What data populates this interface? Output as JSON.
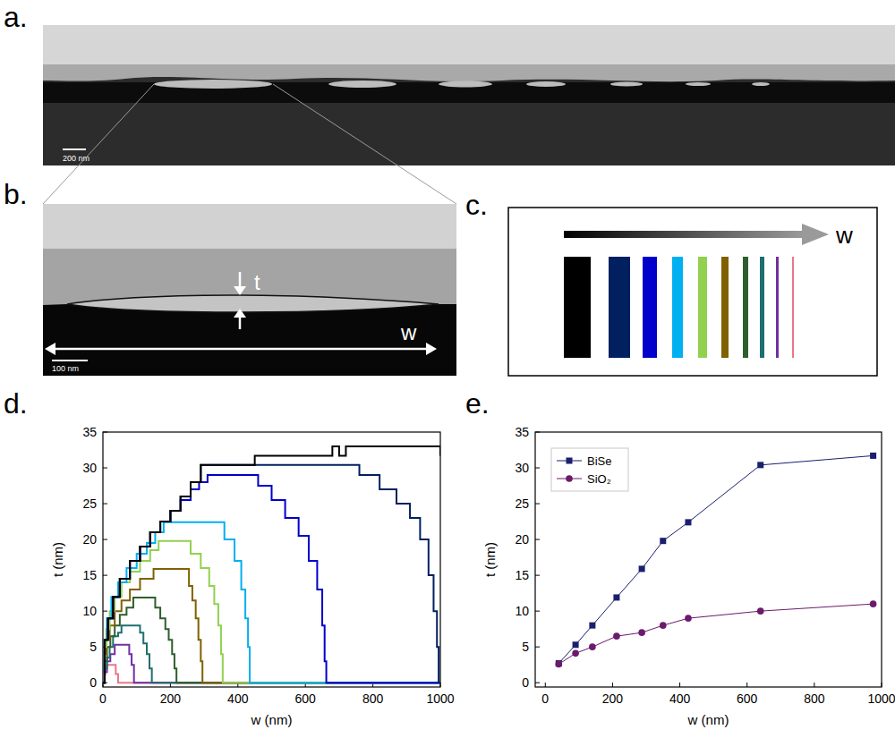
{
  "panels": [
    {
      "label": "a.",
      "scale_bar": "200 nm"
    },
    {
      "label": "b.",
      "scale_bar": "100 nm",
      "t_label": "t",
      "w_label": "w"
    },
    {
      "label": "c.",
      "w_label": "w"
    },
    {
      "label": "d."
    },
    {
      "label": "e."
    }
  ],
  "chart_data": [
    {
      "type": "line",
      "line_style": "step",
      "x_label": "w (nm)",
      "y_label": "t (nm)",
      "xlim": [
        0,
        1000
      ],
      "xticks": [
        0,
        200,
        400,
        600,
        800,
        1000
      ],
      "ylim": [
        -0.6,
        35
      ],
      "yticks": [
        0,
        5,
        10,
        15,
        20,
        25,
        30,
        35
      ],
      "series": [
        {
          "color": "#000000",
          "x": [
            0,
            5,
            15,
            30,
            50,
            80,
            110,
            140,
            170,
            200,
            230,
            260,
            290,
            450,
            680,
            700,
            720,
            1000
          ],
          "values": [
            0,
            6,
            9,
            12,
            14.5,
            17,
            19,
            21,
            22.5,
            24,
            26,
            28,
            30.4,
            31.7,
            33,
            31.7,
            33,
            31.7
          ]
        },
        {
          "color": "#002060",
          "x": [
            0,
            5,
            15,
            30,
            50,
            80,
            110,
            140,
            170,
            200,
            230,
            260,
            290,
            700,
            760,
            820,
            870,
            910,
            940,
            965,
            980,
            990,
            995,
            1000
          ],
          "values": [
            0,
            6,
            9,
            12,
            14.5,
            17,
            19,
            21,
            22.5,
            24,
            26,
            28,
            30.4,
            30.4,
            29,
            27,
            25,
            23,
            20,
            15,
            10,
            5,
            0,
            0
          ]
        },
        {
          "color": "#0000cc",
          "x": [
            0,
            5,
            15,
            30,
            50,
            80,
            110,
            140,
            170,
            200,
            230,
            260,
            285,
            310,
            420,
            460,
            500,
            540,
            580,
            610,
            635,
            650,
            657,
            662,
            1000
          ],
          "values": [
            0,
            6,
            9,
            12,
            14.5,
            17,
            19,
            21,
            22.5,
            24,
            25.5,
            27,
            28,
            29,
            29,
            27.5,
            25.5,
            23,
            20.5,
            17,
            13,
            8,
            3,
            0,
            0
          ]
        },
        {
          "color": "#00b0f0",
          "x": [
            0,
            5,
            12,
            25,
            45,
            70,
            100,
            130,
            155,
            180,
            330,
            360,
            390,
            410,
            422,
            430,
            435,
            1000
          ],
          "values": [
            0,
            6,
            9,
            12,
            14,
            16,
            18,
            19.5,
            21,
            22.4,
            22.4,
            20,
            17,
            13,
            9,
            5,
            0,
            0
          ]
        },
        {
          "color": "#92d050",
          "x": [
            0,
            5,
            10,
            20,
            35,
            55,
            80,
            110,
            140,
            165,
            225,
            260,
            290,
            315,
            330,
            342,
            350,
            355,
            1000
          ],
          "values": [
            0,
            5,
            7.5,
            10,
            12,
            14,
            15.5,
            17,
            18.5,
            19.8,
            19.8,
            18,
            16,
            13.5,
            11,
            8,
            4,
            0,
            0
          ]
        },
        {
          "color": "#806000",
          "x": [
            0,
            5,
            10,
            20,
            35,
            55,
            80,
            110,
            150,
            240,
            255,
            265,
            275,
            283,
            290,
            295,
            1000
          ],
          "values": [
            0,
            4,
            6,
            8,
            10,
            11.5,
            13,
            14.5,
            15.9,
            15.9,
            13.5,
            11.5,
            9,
            6,
            3,
            0,
            0
          ]
        },
        {
          "color": "#2e5e2e",
          "x": [
            0,
            5,
            12,
            22,
            35,
            50,
            70,
            90,
            130,
            155,
            170,
            185,
            195,
            205,
            212,
            218,
            1000
          ],
          "values": [
            0,
            3,
            5,
            6.5,
            8,
            9.5,
            10.5,
            11.9,
            11.9,
            10.5,
            9,
            7.5,
            6,
            4,
            2,
            0,
            0
          ]
        },
        {
          "color": "#1f6f6f",
          "x": [
            0,
            5,
            12,
            20,
            30,
            45,
            55,
            95,
            110,
            120,
            130,
            138,
            145,
            1000
          ],
          "values": [
            0,
            2,
            3.5,
            5,
            6.5,
            7,
            8,
            8,
            7,
            5.5,
            4,
            2,
            0,
            0
          ]
        },
        {
          "color": "#7030a0",
          "x": [
            0,
            5,
            12,
            22,
            35,
            70,
            78,
            85,
            92,
            1000
          ],
          "values": [
            0,
            1.5,
            3,
            4,
            5.3,
            5.3,
            4,
            2.5,
            0,
            0
          ]
        },
        {
          "color": "#e8788a",
          "x": [
            0,
            3,
            8,
            15,
            38,
            45,
            1000
          ],
          "values": [
            0,
            1.2,
            2.5,
            2.5,
            1.2,
            0,
            0
          ]
        }
      ]
    },
    {
      "type": "line",
      "legend": "upper left",
      "x_label": "w (nm)",
      "y_label": "t (nm)",
      "xlim": [
        -30,
        1000
      ],
      "xticks": [
        0,
        200,
        400,
        600,
        800,
        1000
      ],
      "ylim": [
        -0.6,
        35
      ],
      "yticks": [
        0,
        5,
        10,
        15,
        20,
        25,
        30,
        35
      ],
      "x": [
        40,
        90,
        140,
        212,
        287,
        350,
        425,
        640,
        975
      ],
      "series": [
        {
          "name": "BiSe",
          "color": "#1a1f6e",
          "marker": "square",
          "values": [
            2.7,
            5.3,
            8,
            11.9,
            15.9,
            19.8,
            22.4,
            30.4,
            31.7
          ]
        },
        {
          "name": "SiO₂",
          "color": "#6b1b6b",
          "marker": "circle",
          "values": [
            2.6,
            4.1,
            5,
            6.5,
            7,
            8,
            9,
            10,
            11
          ]
        }
      ]
    }
  ]
}
